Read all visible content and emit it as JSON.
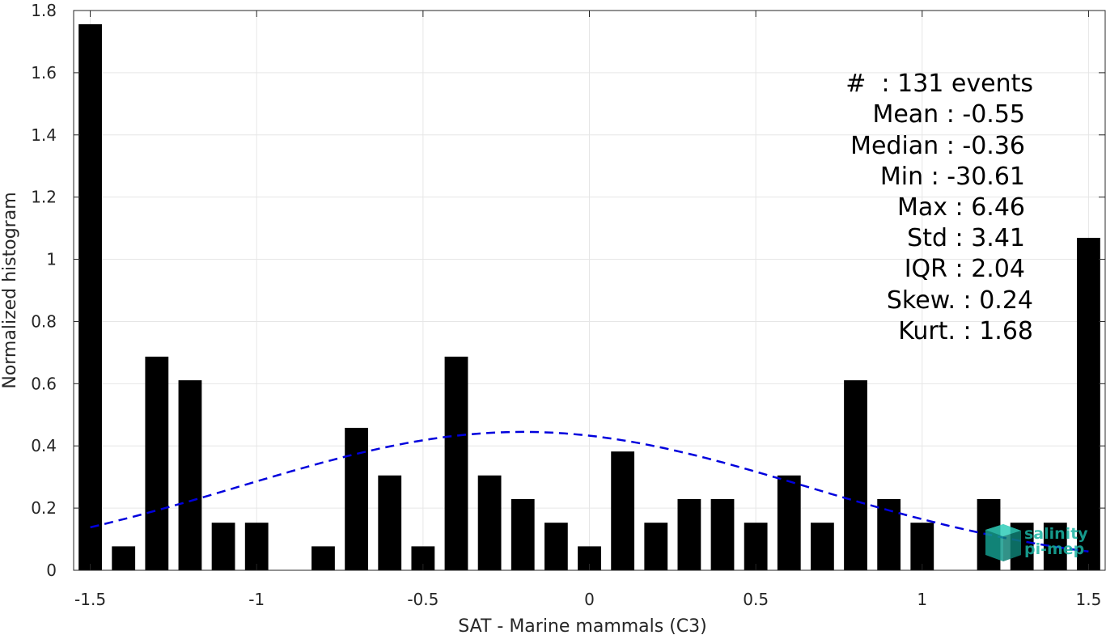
{
  "chart_data": {
    "type": "bar",
    "xlabel": "SAT - Marine mammals (C3)",
    "ylabel": "Normalized histogram",
    "xlim": [
      -1.55,
      1.55
    ],
    "ylim": [
      0,
      1.8
    ],
    "xticks": [
      -1.5,
      -1,
      -0.5,
      0,
      0.5,
      1,
      1.5
    ],
    "xtick_labels": [
      "-1.5",
      "-1",
      "-0.5",
      "0",
      "0.5",
      "1",
      "1.5"
    ],
    "yticks": [
      0,
      0.2,
      0.4,
      0.6,
      0.8,
      1,
      1.2,
      1.4,
      1.6,
      1.8
    ],
    "ytick_labels": [
      "0",
      "0.2",
      "0.4",
      "0.6",
      "0.8",
      "1",
      "1.2",
      "1.4",
      "1.6",
      "1.8"
    ],
    "grid": true,
    "bar_width": 0.07,
    "bar_color": "#000000",
    "bars": [
      {
        "x": -1.5,
        "y": 1.756
      },
      {
        "x": -1.4,
        "y": 0.077
      },
      {
        "x": -1.3,
        "y": 0.687
      },
      {
        "x": -1.2,
        "y": 0.611
      },
      {
        "x": -1.1,
        "y": 0.153
      },
      {
        "x": -1.0,
        "y": 0.153
      },
      {
        "x": -0.9,
        "y": 0.0
      },
      {
        "x": -0.8,
        "y": 0.077
      },
      {
        "x": -0.7,
        "y": 0.458
      },
      {
        "x": -0.6,
        "y": 0.305
      },
      {
        "x": -0.5,
        "y": 0.077
      },
      {
        "x": -0.4,
        "y": 0.687
      },
      {
        "x": -0.3,
        "y": 0.305
      },
      {
        "x": -0.2,
        "y": 0.229
      },
      {
        "x": -0.1,
        "y": 0.153
      },
      {
        "x": 0.0,
        "y": 0.077
      },
      {
        "x": 0.1,
        "y": 0.382
      },
      {
        "x": 0.2,
        "y": 0.153
      },
      {
        "x": 0.3,
        "y": 0.229
      },
      {
        "x": 0.4,
        "y": 0.229
      },
      {
        "x": 0.5,
        "y": 0.153
      },
      {
        "x": 0.6,
        "y": 0.305
      },
      {
        "x": 0.7,
        "y": 0.153
      },
      {
        "x": 0.8,
        "y": 0.611
      },
      {
        "x": 0.9,
        "y": 0.229
      },
      {
        "x": 1.0,
        "y": 0.153
      },
      {
        "x": 1.1,
        "y": 0.0
      },
      {
        "x": 1.2,
        "y": 0.229
      },
      {
        "x": 1.3,
        "y": 0.153
      },
      {
        "x": 1.4,
        "y": 0.153
      },
      {
        "x": 1.5,
        "y": 1.069
      }
    ],
    "fit_curve": {
      "style": "dashed",
      "color": "#0000dd",
      "x_range": [
        -1.5,
        1.5
      ],
      "peak_x": -0.2,
      "peak_y": 0.445,
      "sigma": 0.85
    },
    "stats": [
      {
        "label": "#",
        "value": ": 131 events"
      },
      {
        "label": "Mean",
        "value": ": -0.55"
      },
      {
        "label": "Median",
        "value": ": -0.36"
      },
      {
        "label": "Min",
        "value": ": -30.61"
      },
      {
        "label": "Max",
        "value": ": 6.46"
      },
      {
        "label": "Std",
        "value": ": 3.41"
      },
      {
        "label": "IQR",
        "value": ": 2.04"
      },
      {
        "label": "Skew.",
        "value": ": 0.24"
      },
      {
        "label": "Kurt.",
        "value": ": 1.68"
      }
    ]
  },
  "stats_lines": [
    "#  : 131 events",
    "Mean : -0.55",
    "Median : -0.36",
    "Min : -30.61",
    "Max : 6.46",
    "Std : 3.41",
    "IQR : 2.04",
    "Skew. : 0.24",
    "Kurt. : 1.68"
  ],
  "logo": {
    "line1": "salinity",
    "line2": "pi-mep"
  }
}
